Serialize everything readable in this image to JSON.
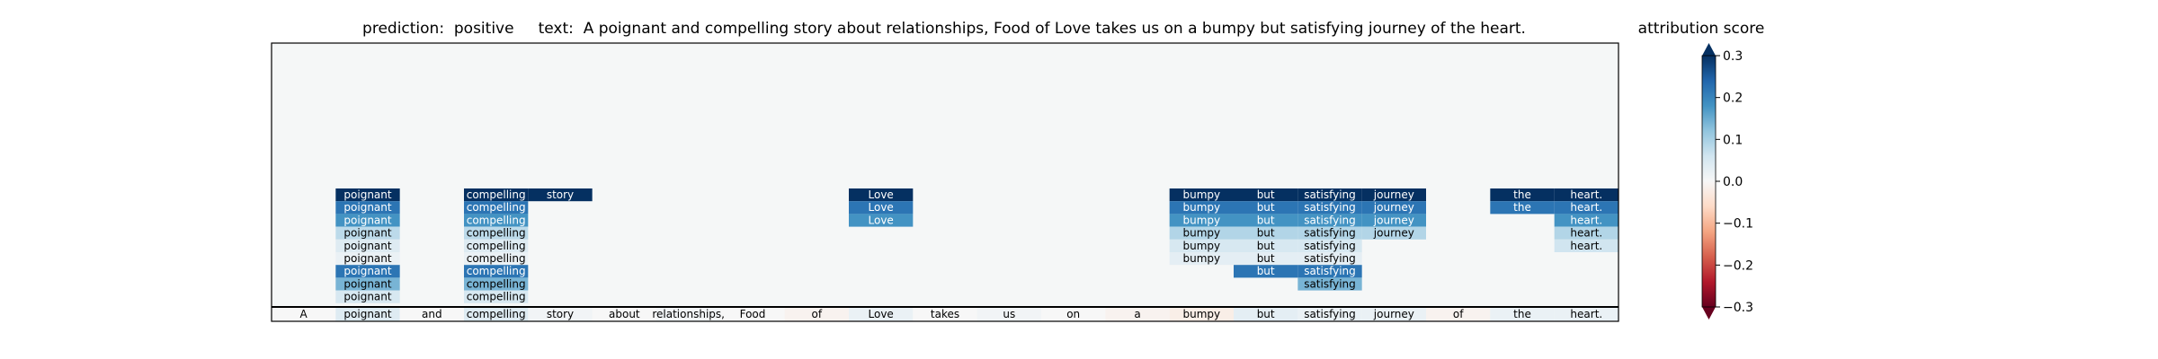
{
  "title": {
    "prediction_label": "prediction:",
    "prediction": "positive",
    "text_label": "text:",
    "text": "A poignant and compelling story about relationships, Food of Love takes us on a bumpy but satisfying journey of the heart."
  },
  "colorbar": {
    "title": "attribution score",
    "ticks": [
      0.3,
      0.2,
      0.1,
      0.0,
      -0.1,
      -0.2,
      -0.3
    ],
    "tick_labels": [
      "0.3",
      "0.2",
      "0.1",
      "0.0",
      "−0.1",
      "−0.2",
      "−0.3"
    ],
    "range": [
      -0.3,
      0.3
    ],
    "colormap": "RdBu",
    "colors": {
      "neg": "#67001f",
      "zero": "#f7f7f7",
      "pos": "#053061"
    }
  },
  "chart_data": {
    "type": "heatmap",
    "tokens": [
      "A",
      "poignant",
      "and",
      "compelling",
      "story",
      "about",
      "relationships,",
      "Food",
      "of",
      "Love",
      "takes",
      "us",
      "on",
      "a",
      "bumpy",
      "but",
      "satisfying",
      "journey",
      "of",
      "the",
      "heart."
    ],
    "base_scores": [
      0.0,
      0.04,
      0.0,
      0.04,
      0.01,
      0.0,
      0.01,
      0.0,
      -0.01,
      0.02,
      0.0,
      0.01,
      0.0,
      -0.01,
      -0.02,
      0.03,
      0.02,
      0.02,
      -0.01,
      0.02,
      0.02
    ],
    "stacked_scores": [
      [],
      [
        0.3,
        0.22,
        0.18,
        0.08,
        0.04,
        0.02,
        0.22,
        0.14,
        0.05
      ],
      [],
      [
        0.3,
        0.22,
        0.18,
        0.08,
        0.04,
        0.02,
        0.22,
        0.14,
        0.05
      ],
      [
        0.3
      ],
      [],
      [],
      [],
      [],
      [
        0.3,
        0.22,
        0.18
      ],
      [],
      [],
      [],
      [],
      [
        0.3,
        0.22,
        0.18,
        0.09,
        0.05,
        0.03
      ],
      [
        0.3,
        0.22,
        0.18,
        0.09,
        0.05,
        0.03,
        0.22
      ],
      [
        0.3,
        0.22,
        0.18,
        0.09,
        0.05,
        0.03,
        0.22,
        0.14
      ],
      [
        0.3,
        0.22,
        0.18,
        0.09
      ],
      [],
      [
        0.3,
        0.22
      ],
      [
        0.3,
        0.22,
        0.18,
        0.09,
        0.06
      ]
    ],
    "vmin": -0.3,
    "vmax": 0.3,
    "background_score": 0.0
  }
}
